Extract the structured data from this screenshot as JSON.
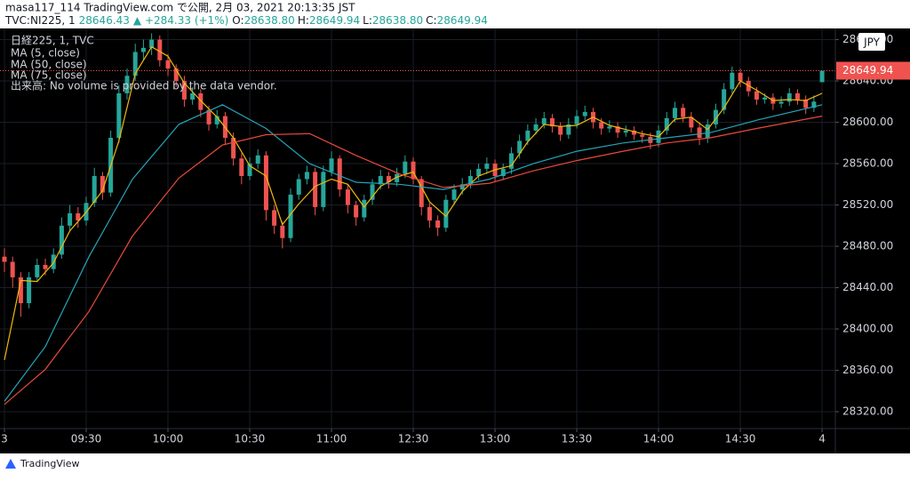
{
  "header": {
    "line1": "masa117_114 TradingView.com で公開, 2月 03, 2021 20:13:35 JST",
    "symbol": "TVC:NI225, 1",
    "price": "28646.43",
    "change": "▲ +284.33 (+1%)",
    "ohlc": [
      {
        "label": "O:",
        "value": "28638.80"
      },
      {
        "label": "H:",
        "value": "28649.94"
      },
      {
        "label": "L:",
        "value": "28638.80"
      },
      {
        "label": "C:",
        "value": "28649.94"
      }
    ]
  },
  "footer": {
    "brand": "TradingView"
  },
  "chart_data": {
    "type": "candlestick",
    "title": "日経225, 1, TVC",
    "note": "出来高: No volume is provided by the data vendor.",
    "currency": "JPY",
    "grid": true,
    "xlim": [
      -1.63,
      304.87
    ],
    "ylim": [
      28303.7,
      28690.8
    ],
    "xticks": [
      {
        "value": 0,
        "label": "3"
      },
      {
        "value": 30,
        "label": "09:30"
      },
      {
        "value": 60,
        "label": "10:00"
      },
      {
        "value": 90,
        "label": "10:30"
      },
      {
        "value": 120,
        "label": "11:00"
      },
      {
        "value": 150,
        "label": "12:30"
      },
      {
        "value": 180,
        "label": "13:00"
      },
      {
        "value": 210,
        "label": "13:30"
      },
      {
        "value": 240,
        "label": "14:00"
      },
      {
        "value": 270,
        "label": "14:30"
      },
      {
        "value": 300,
        "label": "4"
      }
    ],
    "yticks": [
      {
        "value": 28320,
        "label": "28320.00"
      },
      {
        "value": 28360,
        "label": "28360.00"
      },
      {
        "value": 28400,
        "label": "28400.00"
      },
      {
        "value": 28440,
        "label": "28440.00"
      },
      {
        "value": 28480,
        "label": "28480.00"
      },
      {
        "value": 28520,
        "label": "28520.00"
      },
      {
        "value": 28560,
        "label": "28560.00"
      },
      {
        "value": 28600,
        "label": "28600.00"
      },
      {
        "value": 28640,
        "label": "28640.00"
      },
      {
        "value": 28680,
        "label": "28680.00"
      }
    ],
    "x": [
      0,
      3,
      6,
      9,
      12,
      15,
      18,
      21,
      24,
      27,
      30,
      33,
      36,
      39,
      42,
      45,
      48,
      51,
      54,
      57,
      60,
      63,
      66,
      69,
      72,
      75,
      78,
      81,
      84,
      87,
      90,
      93,
      96,
      99,
      102,
      105,
      108,
      111,
      114,
      117,
      120,
      123,
      126,
      129,
      132,
      135,
      138,
      141,
      144,
      147,
      150,
      153,
      156,
      159,
      162,
      165,
      168,
      171,
      174,
      177,
      180,
      183,
      186,
      189,
      192,
      195,
      198,
      201,
      204,
      207,
      210,
      213,
      216,
      219,
      222,
      225,
      228,
      231,
      234,
      237,
      240,
      243,
      246,
      249,
      252,
      255,
      258,
      261,
      264,
      267,
      270,
      273,
      276,
      279,
      282,
      285,
      288,
      291,
      294,
      297,
      300
    ],
    "series": [
      {
        "name": "日経225, 1, TVC",
        "type": "candlestick",
        "up_color": "#26a69a",
        "down_color": "#ef5350",
        "open": [
          28470,
          28465,
          28450,
          28425,
          28450,
          28462,
          28458,
          28472,
          28500,
          28512,
          28505,
          28522,
          28548,
          28532,
          28585,
          28628,
          28645,
          28668,
          28672,
          28680,
          28660,
          28652,
          28640,
          28622,
          28628,
          28612,
          28598,
          28606,
          28585,
          28565,
          28548,
          28560,
          28568,
          28515,
          28500,
          28488,
          28530,
          28545,
          28552,
          28518,
          28552,
          28565,
          28535,
          28520,
          28508,
          28525,
          28540,
          28548,
          28542,
          28550,
          28562,
          28545,
          28518,
          28505,
          28498,
          28525,
          28535,
          28540,
          28548,
          28555,
          28560,
          28548,
          28555,
          28570,
          28582,
          28592,
          28598,
          28604,
          28596,
          28588,
          28598,
          28606,
          28610,
          28600,
          28594,
          28596,
          28590,
          28592,
          28588,
          28586,
          28580,
          28592,
          28604,
          28614,
          28605,
          28595,
          28585,
          28598,
          28612,
          28632,
          28648,
          28640,
          28630,
          28622,
          28624,
          28618,
          28620,
          28628,
          28622,
          28614,
          28638.8
        ],
        "high": [
          28478,
          28470,
          28455,
          28455,
          28468,
          28468,
          28478,
          28508,
          28520,
          28518,
          28528,
          28556,
          28552,
          28592,
          28636,
          28652,
          28676,
          28680,
          28686,
          28684,
          28666,
          28656,
          28645,
          28634,
          28632,
          28616,
          28612,
          28610,
          28590,
          28570,
          28566,
          28574,
          28572,
          28520,
          28504,
          28536,
          28550,
          28558,
          28556,
          28558,
          28572,
          28568,
          28540,
          28524,
          28530,
          28545,
          28554,
          28552,
          28556,
          28568,
          28566,
          28548,
          28522,
          28510,
          28530,
          28540,
          28546,
          28554,
          28560,
          28566,
          28564,
          28560,
          28576,
          28588,
          28598,
          28604,
          28610,
          28608,
          28600,
          28604,
          28612,
          28616,
          28614,
          28604,
          28602,
          28600,
          28597,
          28596,
          28592,
          28590,
          28597,
          28610,
          28620,
          28618,
          28610,
          28600,
          28603,
          28618,
          28638,
          28654,
          28652,
          28644,
          28634,
          28628,
          28628,
          28625,
          28633,
          28632,
          28626,
          28626,
          28649.94
        ],
        "low": [
          28455,
          28440,
          28412,
          28420,
          28446,
          28452,
          28454,
          28468,
          28495,
          28498,
          28500,
          28518,
          28525,
          28528,
          28580,
          28622,
          28640,
          28660,
          28665,
          28654,
          28645,
          28634,
          28615,
          28617,
          28605,
          28592,
          28594,
          28578,
          28558,
          28540,
          28544,
          28555,
          28505,
          28492,
          28478,
          28484,
          28525,
          28540,
          28510,
          28514,
          28548,
          28528,
          28512,
          28500,
          28504,
          28520,
          28535,
          28536,
          28538,
          28546,
          28540,
          28510,
          28498,
          28490,
          28494,
          28520,
          28530,
          28536,
          28544,
          28550,
          28542,
          28544,
          28550,
          28565,
          28578,
          28588,
          28594,
          28590,
          28582,
          28584,
          28594,
          28602,
          28594,
          28588,
          28590,
          28585,
          28586,
          28583,
          28580,
          28574,
          28576,
          28588,
          28600,
          28600,
          28590,
          28578,
          28580,
          28594,
          28608,
          28628,
          28634,
          28625,
          28617,
          28618,
          28612,
          28614,
          28616,
          28617,
          28608,
          28610,
          28638.8
        ],
        "close": [
          28465,
          28450,
          28425,
          28450,
          28462,
          28458,
          28472,
          28500,
          28512,
          28505,
          28522,
          28548,
          28532,
          28585,
          28628,
          28645,
          28668,
          28672,
          28680,
          28660,
          28652,
          28640,
          28622,
          28628,
          28612,
          28598,
          28606,
          28585,
          28565,
          28548,
          28560,
          28568,
          28515,
          28500,
          28488,
          28530,
          28545,
          28552,
          28518,
          28552,
          28565,
          28535,
          28520,
          28508,
          28525,
          28540,
          28548,
          28542,
          28550,
          28562,
          28545,
          28518,
          28505,
          28498,
          28525,
          28535,
          28540,
          28548,
          28555,
          28560,
          28548,
          28555,
          28570,
          28582,
          28592,
          28598,
          28604,
          28596,
          28588,
          28598,
          28606,
          28610,
          28600,
          28594,
          28596,
          28590,
          28592,
          28588,
          28586,
          28580,
          28592,
          28604,
          28614,
          28605,
          28595,
          28585,
          28598,
          28612,
          28632,
          28648,
          28640,
          28630,
          28622,
          28624,
          28618,
          28620,
          28628,
          28622,
          28614,
          28620,
          28649.94
        ]
      },
      {
        "name": "MA (5, close)",
        "type": "line",
        "color": "#f0b90b",
        "x": [
          0,
          6,
          12,
          18,
          24,
          30,
          36,
          42,
          48,
          54,
          60,
          66,
          72,
          78,
          84,
          90,
          96,
          102,
          108,
          114,
          120,
          126,
          132,
          138,
          144,
          150,
          156,
          162,
          168,
          174,
          180,
          186,
          192,
          198,
          204,
          210,
          216,
          222,
          228,
          234,
          240,
          246,
          252,
          258,
          264,
          270,
          276,
          282,
          288,
          294,
          300
        ],
        "values": [
          28370,
          28447,
          28446,
          28464,
          28495,
          28513,
          28534,
          28582,
          28647,
          28673,
          28664,
          28638,
          28621,
          28605,
          28585,
          28558,
          28548,
          28501,
          28521,
          28538,
          28545,
          28540,
          28518,
          28538,
          28547,
          28552,
          28523,
          28509,
          28533,
          28548,
          28554,
          28558,
          28581,
          28598,
          28596,
          28597,
          28605,
          28597,
          28593,
          28589,
          28586,
          28603,
          28605,
          28593,
          28614,
          28640,
          28631,
          28621,
          28622,
          28621,
          28628
        ]
      },
      {
        "name": "MA (50, close)",
        "type": "line",
        "color": "#26a4b8",
        "x": [
          0,
          15,
          31,
          47,
          64,
          80,
          96,
          112,
          129,
          145,
          161,
          178,
          194,
          210,
          227,
          243,
          259,
          276,
          300
        ],
        "values": [
          28330,
          28383,
          28470,
          28545,
          28598,
          28617,
          28594,
          28560,
          28542,
          28540,
          28535,
          28545,
          28560,
          28572,
          28580,
          28585,
          28590,
          28602,
          28617
        ]
      },
      {
        "name": "MA (75, close)",
        "type": "line",
        "color": "#e84a3a",
        "x": [
          0,
          15,
          31,
          47,
          64,
          80,
          96,
          112,
          129,
          145,
          161,
          178,
          194,
          210,
          227,
          243,
          259,
          276,
          300
        ],
        "values": [
          28327,
          28361,
          28417,
          28490,
          28546,
          28578,
          28588,
          28589,
          28568,
          28550,
          28537,
          28541,
          28553,
          28563,
          28572,
          28580,
          28585,
          28594,
          28606
        ]
      }
    ]
  }
}
